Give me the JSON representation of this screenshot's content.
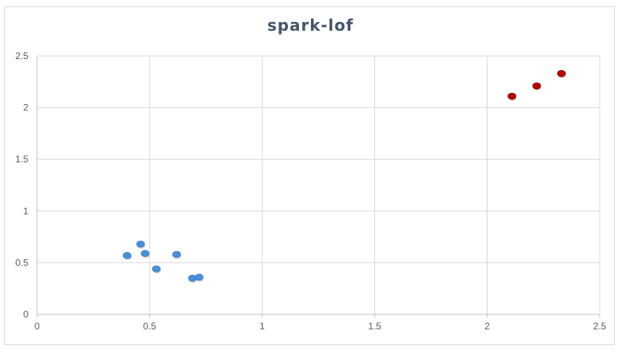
{
  "chart_data": {
    "type": "scatter",
    "title": "spark-lof",
    "xlabel": "",
    "ylabel": "",
    "xlim": [
      0,
      2.5
    ],
    "ylim": [
      0,
      2.5
    ],
    "xticks": [
      "0",
      "0.5",
      "1",
      "1.5",
      "2",
      "2.5"
    ],
    "yticks": [
      "0",
      "0.5",
      "1",
      "1.5",
      "2",
      "2.5"
    ],
    "grid": true,
    "legend": "none",
    "series": [
      {
        "color": "#4a90d9",
        "points": [
          {
            "x": 0.4,
            "y": 0.57
          },
          {
            "x": 0.46,
            "y": 0.68
          },
          {
            "x": 0.48,
            "y": 0.59
          },
          {
            "x": 0.53,
            "y": 0.44
          },
          {
            "x": 0.62,
            "y": 0.58
          },
          {
            "x": 0.69,
            "y": 0.35
          },
          {
            "x": 0.72,
            "y": 0.36
          }
        ]
      },
      {
        "color": "#c00000",
        "points": [
          {
            "x": 2.11,
            "y": 2.11
          },
          {
            "x": 2.22,
            "y": 2.21
          },
          {
            "x": 2.33,
            "y": 2.33
          }
        ]
      }
    ]
  }
}
